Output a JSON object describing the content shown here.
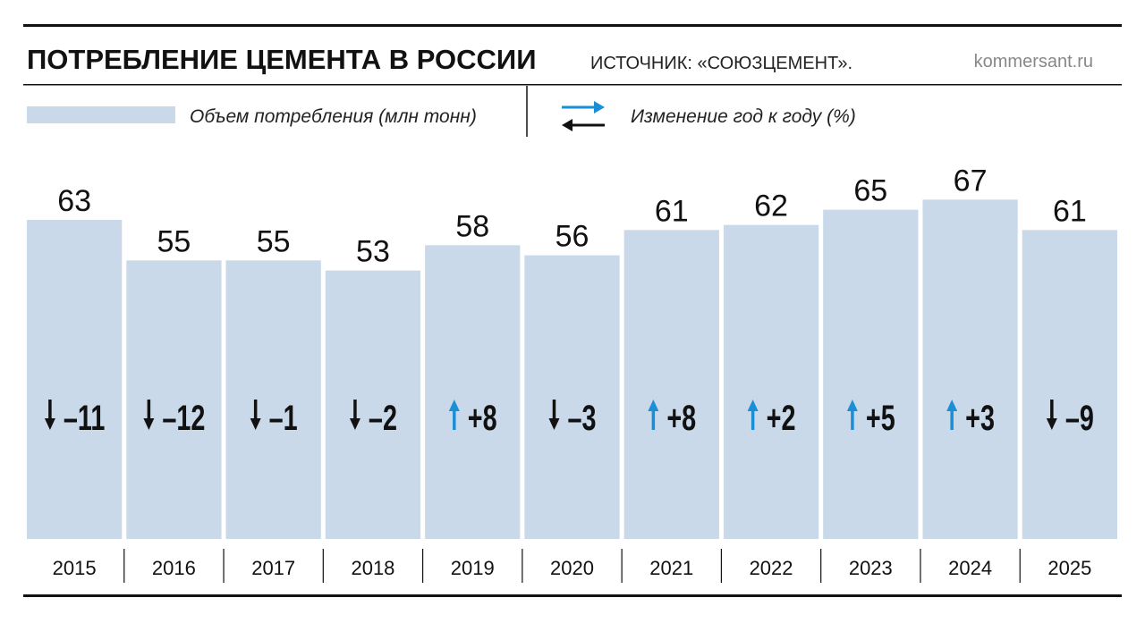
{
  "chart_data": {
    "type": "bar",
    "title": "ПОТРЕБЛЕНИЕ ЦЕМЕНТА В РОССИИ",
    "source": "ИСТОЧНИК: «СОЮЗЦЕМЕНТ».",
    "site": "kommersant.ru",
    "categories": [
      "2015",
      "2016",
      "2017",
      "2018",
      "2019",
      "2020",
      "2021",
      "2022",
      "2023",
      "2024",
      "2025"
    ],
    "series": [
      {
        "name": "Объем потребления (млн тонн)",
        "color": "#c9d9ea",
        "values": [
          63,
          55,
          55,
          53,
          58,
          56,
          61,
          62,
          65,
          67,
          61
        ]
      },
      {
        "name": "Изменение год к году (%)",
        "color_up": "#1a8fd6",
        "color_down": "#111111",
        "values": [
          -11,
          -12,
          -1,
          -2,
          8,
          -3,
          8,
          2,
          5,
          3,
          -9
        ],
        "value_labels": [
          "–11",
          "–12",
          "–1",
          "–2",
          "+8",
          "–3",
          "+8",
          "+2",
          "+5",
          "+3",
          "–9"
        ]
      }
    ]
  }
}
